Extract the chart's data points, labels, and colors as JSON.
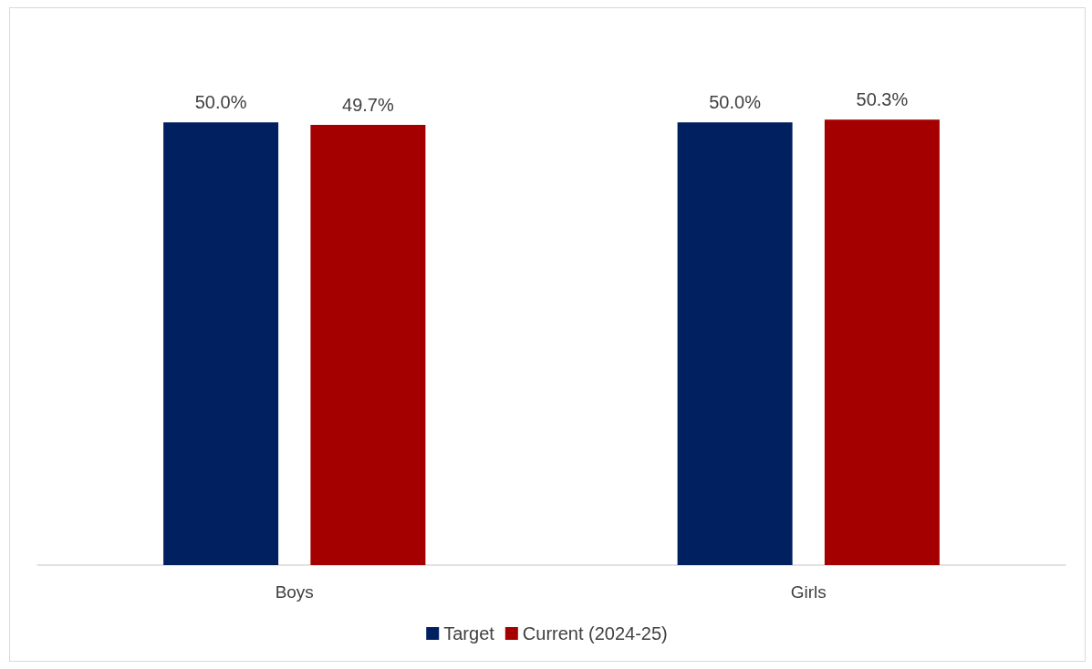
{
  "chart_data": {
    "type": "bar",
    "categories": [
      "Boys",
      "Girls"
    ],
    "series": [
      {
        "name": "Target",
        "color": "#002060",
        "values": [
          50.0,
          50.0
        ],
        "value_labels": [
          "50.0%",
          "50.0%"
        ]
      },
      {
        "name": "Current (2024-25)",
        "color": "#a50000",
        "values": [
          49.7,
          50.3
        ],
        "value_labels": [
          "49.7%",
          "50.3%"
        ]
      }
    ],
    "legend": "bottom"
  }
}
